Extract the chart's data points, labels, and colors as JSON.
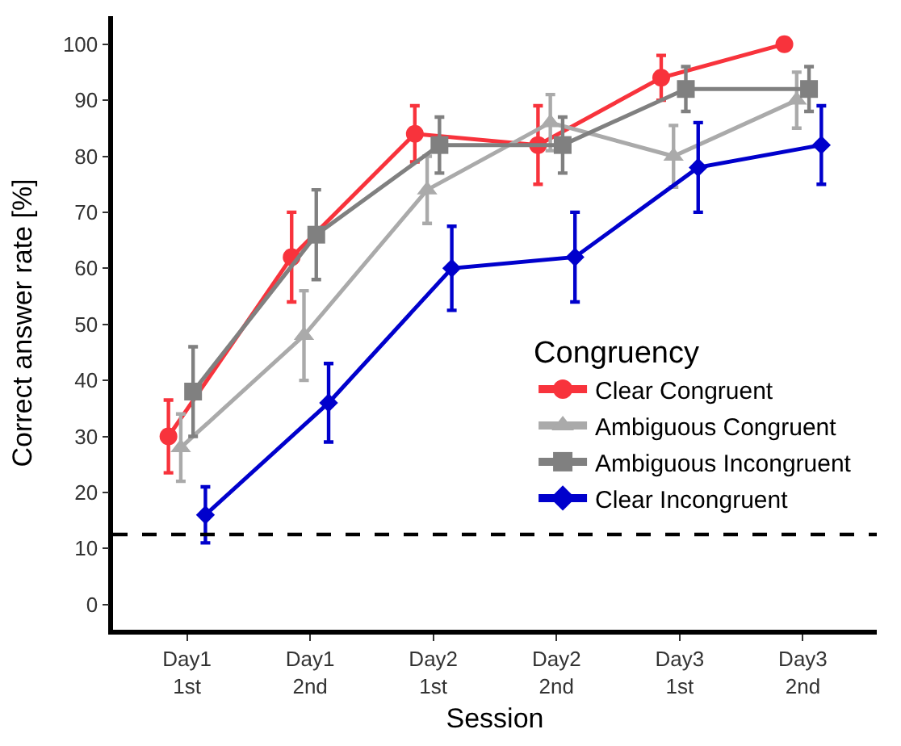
{
  "chart_data": {
    "type": "line",
    "xlabel": "Session",
    "ylabel": "Correct answer rate [%]",
    "legend_title": "Congruency",
    "categories": [
      "Day1\n1st",
      "Day1\n2nd",
      "Day2\n1st",
      "Day2\n2nd",
      "Day3\n1st",
      "Day3\n2nd"
    ],
    "series": [
      {
        "name": "Clear Congruent",
        "color": "#f8333c",
        "marker": "circle",
        "values": [
          30,
          62,
          84,
          82,
          94,
          100
        ],
        "errors": [
          6.5,
          8,
          5,
          7,
          4,
          null
        ]
      },
      {
        "name": "Ambiguous Congruent",
        "color": "#aaaaaa",
        "marker": "triangle",
        "values": [
          28,
          48,
          74,
          86,
          80,
          90
        ],
        "errors": [
          6,
          8,
          6,
          5,
          5.5,
          5
        ]
      },
      {
        "name": "Ambiguous Incongruent",
        "color": "#808080",
        "marker": "square",
        "values": [
          38,
          66,
          82,
          82,
          92,
          92
        ],
        "errors": [
          8,
          8,
          5,
          5,
          4,
          4
        ]
      },
      {
        "name": "Clear Incongruent",
        "color": "#0000cc",
        "marker": "diamond",
        "values": [
          16,
          36,
          60,
          62,
          78,
          82
        ],
        "errors": [
          5,
          7,
          7.5,
          8,
          8,
          7
        ]
      }
    ],
    "ylim": [
      -4.5,
      105
    ],
    "yticks": [
      0,
      10,
      20,
      30,
      40,
      50,
      60,
      70,
      80,
      90,
      100
    ],
    "ref_lines": [
      {
        "axis": "y",
        "value": 12.5,
        "color": "#000000",
        "line_style": "dashed"
      }
    ],
    "grid": false,
    "legend": "right"
  }
}
